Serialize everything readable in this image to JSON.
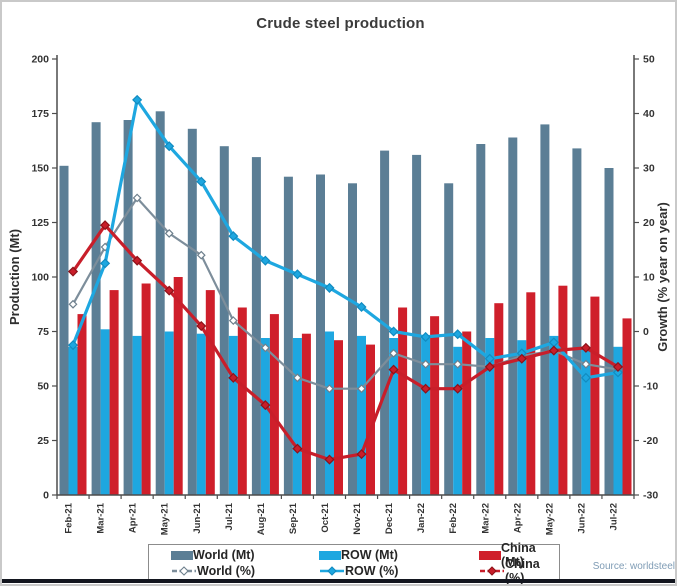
{
  "title": "Crude steel production",
  "source": "Source: worldsteel",
  "chart_data": {
    "type": "bar+line",
    "title": "Crude steel production",
    "categories": [
      "Feb-21",
      "Mar-21",
      "Apr-21",
      "May-21",
      "Jun-21",
      "Jul-21",
      "Aug-21",
      "Sep-21",
      "Oct-21",
      "Nov-21",
      "Dec-21",
      "Jan-22",
      "Feb-22",
      "Mar-22",
      "Apr-22",
      "May-22",
      "Jun-22",
      "Jul-22"
    ],
    "bar_series": [
      {
        "name": "World (Mt)",
        "axis": "left",
        "color": "#5b7e95",
        "values": [
          151,
          171,
          172,
          176,
          168,
          160,
          155,
          146,
          147,
          143,
          158,
          156,
          143,
          161,
          164,
          170,
          159,
          150
        ]
      },
      {
        "name": "ROW (Mt)",
        "axis": "left",
        "color": "#1ea7e0",
        "values": [
          68,
          76,
          73,
          75,
          74,
          73,
          72,
          72,
          75,
          73,
          72,
          73,
          68,
          72,
          71,
          73,
          68,
          68
        ]
      },
      {
        "name": "China (Mt)",
        "axis": "left",
        "color": "#cf1f2b",
        "values": [
          83,
          94,
          97,
          100,
          94,
          86,
          83,
          74,
          71,
          69,
          86,
          82,
          75,
          88,
          93,
          96,
          91,
          81
        ]
      }
    ],
    "line_series": [
      {
        "name": "World (%)",
        "axis": "right",
        "color": "#7d8e9b",
        "marker": "open-diamond",
        "marker_fill": "#ffffff",
        "marker_stroke": "#6d7f8c",
        "width": 2.2,
        "dash": "",
        "values": [
          5,
          15.5,
          24.5,
          18,
          14,
          2,
          -3,
          -8.5,
          -10.5,
          -10.5,
          -4,
          -6,
          -6,
          -6.5,
          -4.5,
          -3.5,
          -6,
          -7
        ]
      },
      {
        "name": "ROW (%)",
        "axis": "right",
        "color": "#1ea7e0",
        "marker": "diamond",
        "marker_fill": "#1ea7e0",
        "marker_stroke": "#128bc0",
        "width": 3.2,
        "dash": "",
        "values": [
          -2.5,
          12.5,
          42.5,
          34,
          27.5,
          17.5,
          13,
          10.5,
          8,
          4.5,
          0,
          -1,
          -0.5,
          -5,
          -4,
          -2,
          -8.5,
          -7.5
        ]
      },
      {
        "name": "China (%)",
        "axis": "right",
        "color": "#c81e2a",
        "marker": "diamond",
        "marker_fill": "#c81e2a",
        "marker_stroke": "#8e1219",
        "width": 3.2,
        "dash": "",
        "values": [
          11,
          19.5,
          13,
          7.5,
          1,
          -8.5,
          -13.5,
          -21.5,
          -23.5,
          -22.5,
          -7,
          -10.5,
          -10.5,
          -6.5,
          -5,
          -3.5,
          -3,
          -6.5
        ]
      }
    ],
    "left_axis": {
      "label": "Production (Mt)",
      "min": 0,
      "max": 200,
      "step": 25
    },
    "right_axis": {
      "label": "Growth (% year on year)",
      "min": -30,
      "max": 50,
      "step": 10
    },
    "grid": false,
    "legend_position": "bottom"
  }
}
